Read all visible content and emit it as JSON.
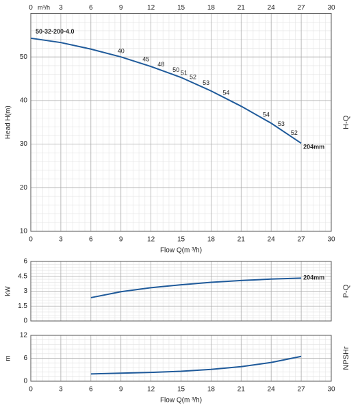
{
  "chart_data": [
    {
      "type": "line",
      "side_label": "H-Q",
      "ylabel": "Head H(m)",
      "xlabel": "Flow Q(m ³/h)",
      "top_unit": "m³/h",
      "model_label": "50-32-200-4.0",
      "curve_label": "204mm",
      "x": [
        0,
        3,
        6,
        9,
        12,
        15,
        18,
        21,
        24,
        27
      ],
      "values": [
        54.3,
        53.3,
        51.8,
        50,
        47.8,
        45.3,
        42.2,
        38.7,
        34.8,
        30.2
      ],
      "color": "#1f5a9a",
      "efficiency": [
        {
          "x": 9,
          "value": 40
        },
        {
          "x": 11.5,
          "value": 45
        },
        {
          "x": 13,
          "value": 48
        },
        {
          "x": 14.5,
          "value": 50
        },
        {
          "x": 15.3,
          "value": 51
        },
        {
          "x": 16.2,
          "value": 52
        },
        {
          "x": 17.5,
          "value": 53
        },
        {
          "x": 19.5,
          "value": 54
        },
        {
          "x": 23.5,
          "value": 54
        },
        {
          "x": 25,
          "value": 53
        },
        {
          "x": 26.3,
          "value": 52
        }
      ],
      "xlim": [
        0,
        30
      ],
      "xticks": [
        0,
        3,
        6,
        9,
        12,
        15,
        18,
        21,
        24,
        27,
        30
      ],
      "xtick_sides": [
        "top",
        "bottom"
      ],
      "ylim": [
        10,
        60
      ],
      "yticks": [
        10,
        20,
        30,
        40,
        50
      ],
      "grid": true,
      "minor_grid": 5
    },
    {
      "type": "line",
      "side_label": "P-Q",
      "ylabel": "kW",
      "curve_label": "204mm",
      "x": [
        6,
        9,
        12,
        15,
        18,
        21,
        24,
        27
      ],
      "values": [
        2.35,
        2.95,
        3.35,
        3.65,
        3.9,
        4.08,
        4.22,
        4.32
      ],
      "color": "#1f5a9a",
      "xlim": [
        0,
        30
      ],
      "xticks": [
        0,
        3,
        6,
        9,
        12,
        15,
        18,
        21,
        24,
        27,
        30
      ],
      "xtick_sides": [],
      "ylim": [
        0,
        6
      ],
      "yticks": [
        0,
        1.5,
        3,
        4.5,
        6
      ],
      "grid": true,
      "minor_grid": 5
    },
    {
      "type": "line",
      "side_label": "NPSHr",
      "ylabel": "m",
      "xlabel": "Flow Q(m ³/h)",
      "x": [
        6,
        9,
        12,
        15,
        18,
        21,
        24,
        27
      ],
      "values": [
        1.9,
        2.1,
        2.3,
        2.6,
        3.1,
        3.8,
        4.9,
        6.5
      ],
      "color": "#1f5a9a",
      "xlim": [
        0,
        30
      ],
      "xticks": [
        0,
        3,
        6,
        9,
        12,
        15,
        18,
        21,
        24,
        27,
        30
      ],
      "xtick_sides": [
        "bottom"
      ],
      "ylim": [
        0,
        12
      ],
      "yticks": [
        0,
        6,
        12
      ],
      "grid": true,
      "minor_grid": 5
    }
  ]
}
